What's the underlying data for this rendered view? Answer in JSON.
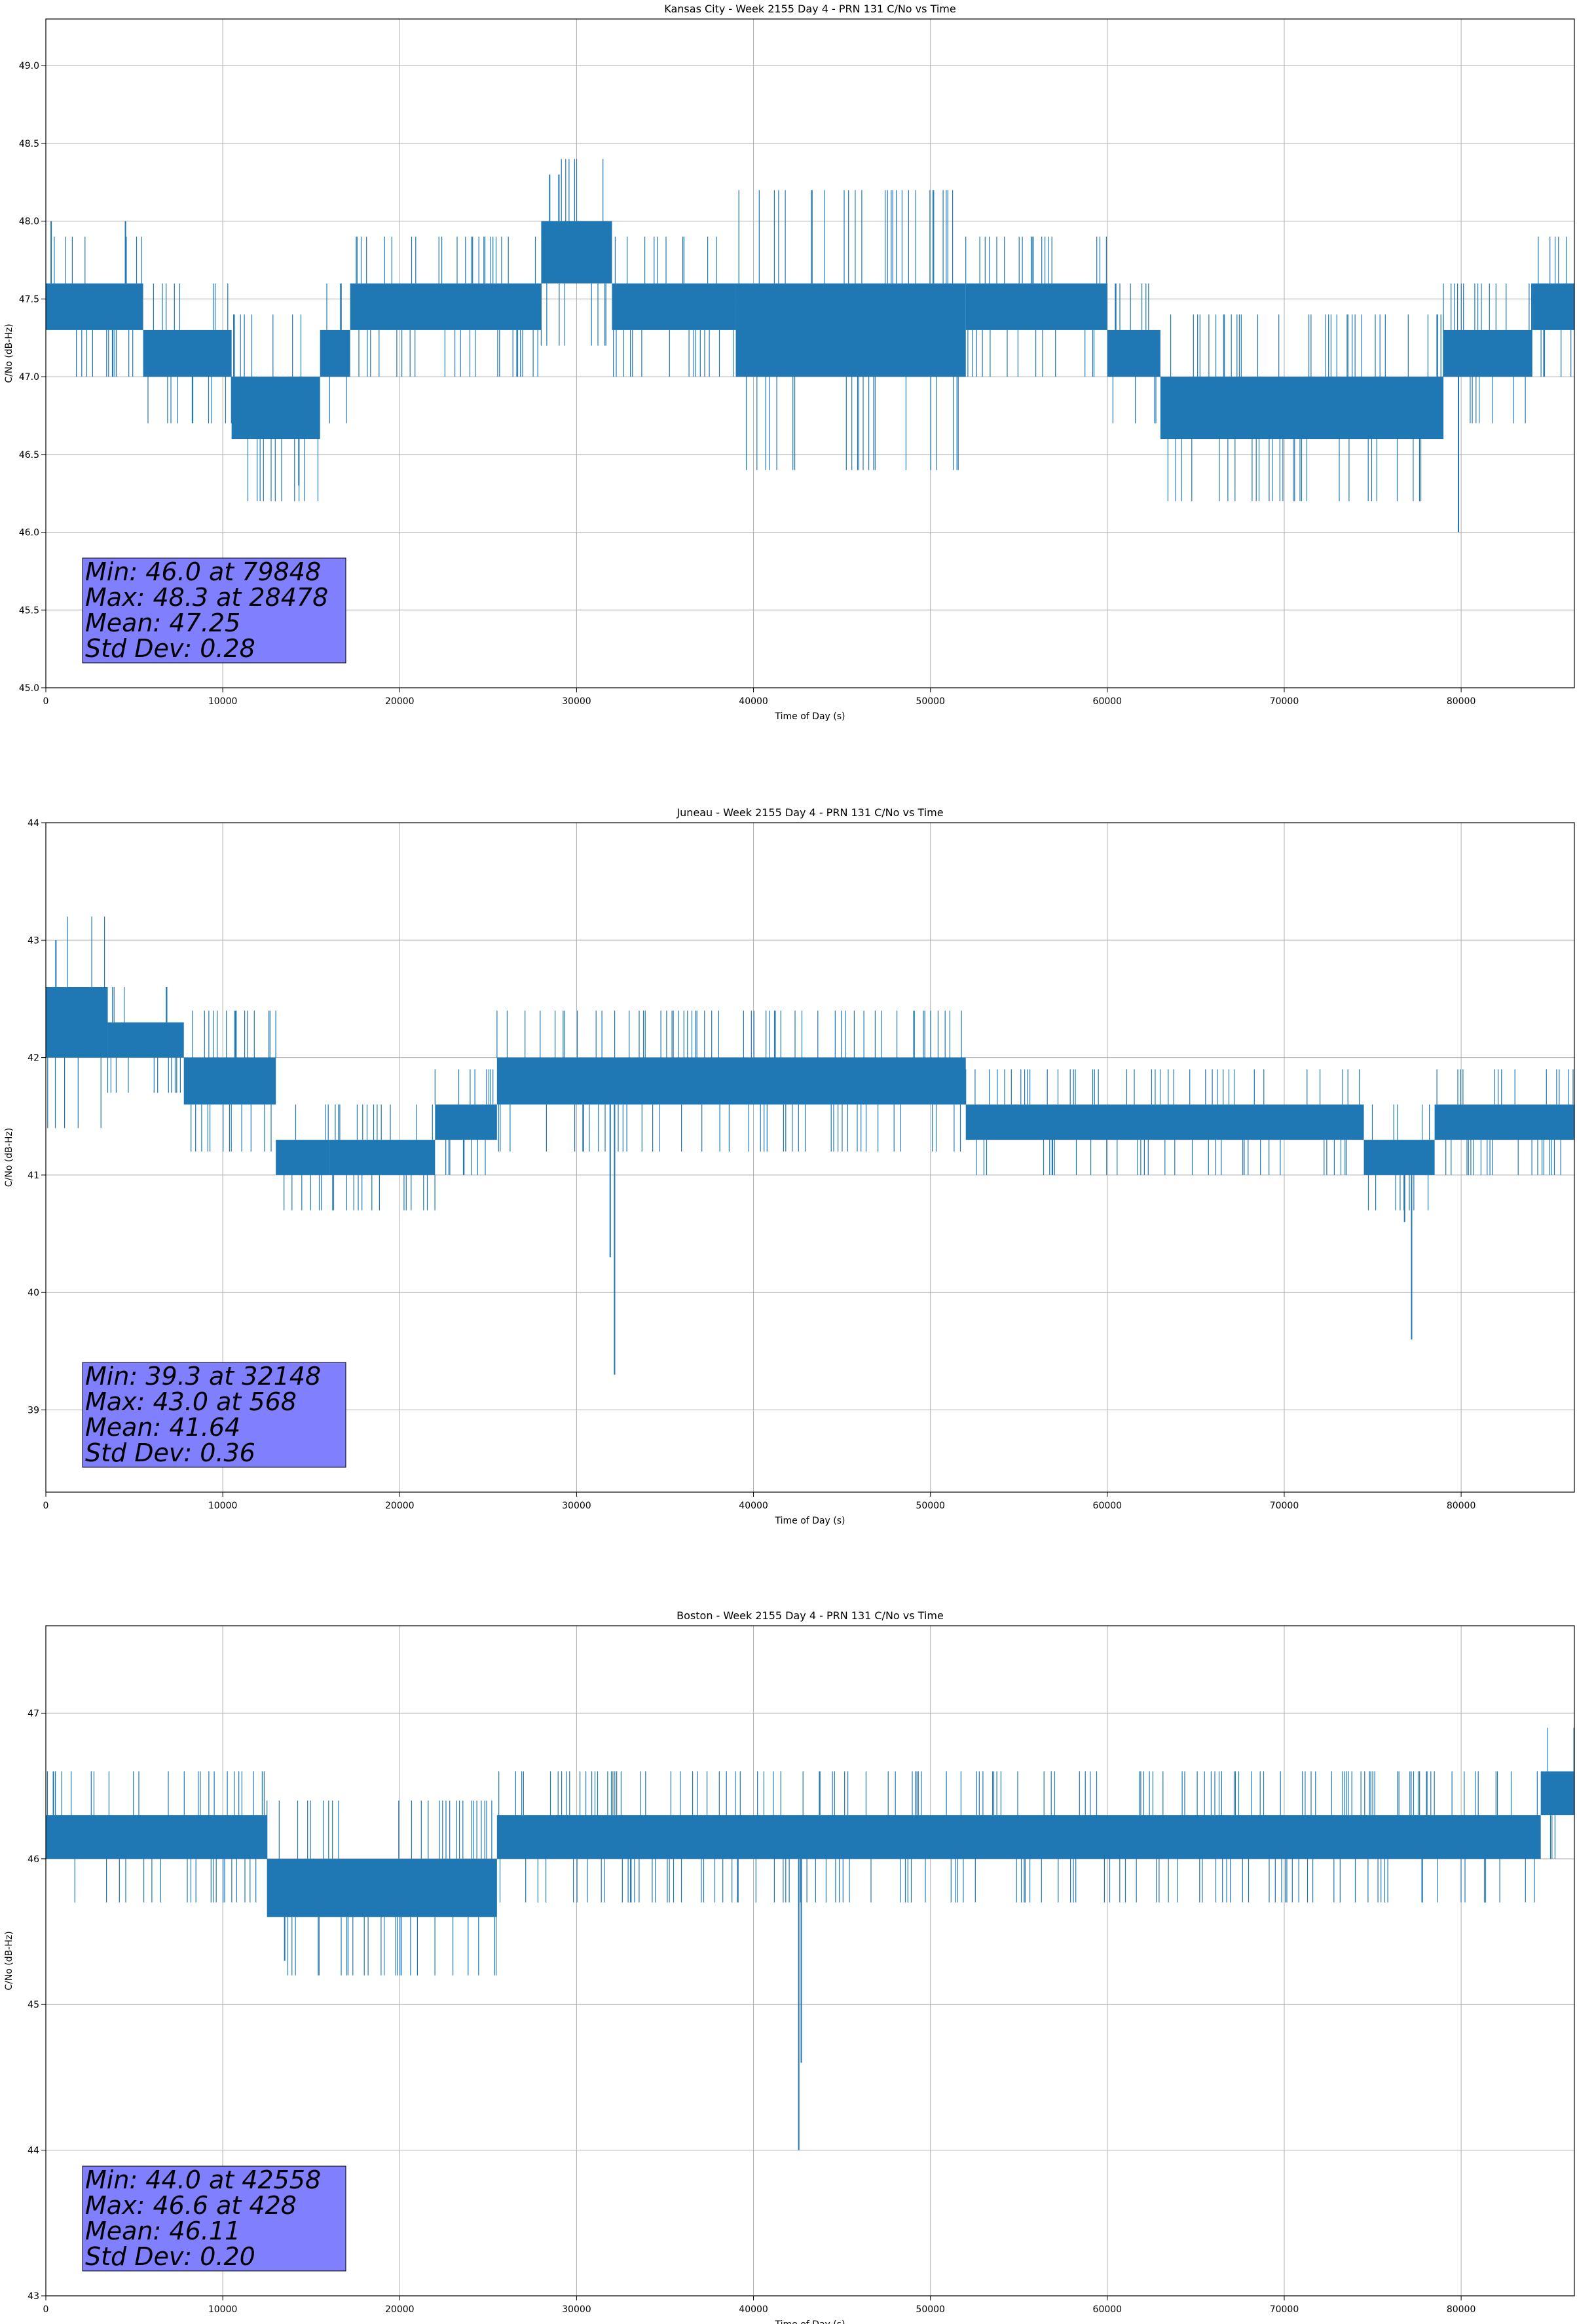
{
  "chart_data": [
    {
      "type": "line",
      "title": "Kansas City - Week 2155 Day 4 - PRN 131 C/No vs Time",
      "xlabel": "Time of Day (s)",
      "ylabel": "C/No (dB-Hz)",
      "xlim": [
        0,
        86400
      ],
      "ylim": [
        45.0,
        49.3
      ],
      "xticks": [
        0,
        10000,
        20000,
        30000,
        40000,
        50000,
        60000,
        70000,
        80000
      ],
      "xtick_labels": [
        "0",
        "10000",
        "20000",
        "30000",
        "40000",
        "50000",
        "60000",
        "70000",
        "80000"
      ],
      "yticks": [
        45.0,
        45.5,
        46.0,
        46.5,
        47.0,
        47.5,
        48.0,
        48.5,
        49.0
      ],
      "ytick_labels": [
        "45.0",
        "45.5",
        "46.0",
        "46.5",
        "47.0",
        "47.5",
        "48.0",
        "48.5",
        "49.0"
      ],
      "grid": true,
      "color": "#1f77b4",
      "series": [
        {
          "segments": [
            {
              "x": [
                0,
                5500
              ],
              "low": 47.3,
              "high": 47.6
            },
            {
              "x": [
                5500,
                10500
              ],
              "low": 47.0,
              "high": 47.3
            },
            {
              "x": [
                10500,
                15500
              ],
              "low": 46.6,
              "high": 47.0
            },
            {
              "x": [
                15500,
                17200
              ],
              "low": 47.0,
              "high": 47.3
            },
            {
              "x": [
                17200,
                28000
              ],
              "low": 47.3,
              "high": 47.6
            },
            {
              "x": [
                28000,
                32000
              ],
              "low": 47.6,
              "high": 48.0
            },
            {
              "x": [
                32000,
                39000
              ],
              "low": 47.3,
              "high": 47.6
            },
            {
              "x": [
                39000,
                52000
              ],
              "low": 47.0,
              "high": 47.6
            },
            {
              "x": [
                52000,
                60000
              ],
              "low": 47.3,
              "high": 47.6
            },
            {
              "x": [
                60000,
                63000
              ],
              "low": 47.0,
              "high": 47.3
            },
            {
              "x": [
                63000,
                79000
              ],
              "low": 46.6,
              "high": 47.0
            },
            {
              "x": [
                79000,
                84000
              ],
              "low": 47.0,
              "high": 47.3
            },
            {
              "x": [
                84000,
                86400
              ],
              "low": 47.3,
              "high": 47.6
            }
          ],
          "spikes": [
            {
              "x": 28478,
              "y": 48.3
            },
            {
              "x": 29000,
              "y": 48.3
            },
            {
              "x": 300,
              "y": 48.0
            },
            {
              "x": 4500,
              "y": 48.0
            },
            {
              "x": 14300,
              "y": 46.3
            },
            {
              "x": 79848,
              "y": 46.0
            }
          ]
        }
      ],
      "annotation": {
        "lines": [
          "Min: 46.0 at 79848",
          "Max: 48.3 at 28478",
          "Mean: 47.25",
          "Std Dev: 0.28"
        ],
        "box_color": "#8080ff"
      }
    },
    {
      "type": "line",
      "title": "Juneau - Week 2155 Day 4 - PRN 131 C/No vs Time",
      "xlabel": "Time of Day (s)",
      "ylabel": "C/No (dB-Hz)",
      "xlim": [
        0,
        86400
      ],
      "ylim": [
        38.3,
        44.0
      ],
      "xticks": [
        0,
        10000,
        20000,
        30000,
        40000,
        50000,
        60000,
        70000,
        80000
      ],
      "xtick_labels": [
        "0",
        "10000",
        "20000",
        "30000",
        "40000",
        "50000",
        "60000",
        "70000",
        "80000"
      ],
      "yticks": [
        39,
        40,
        41,
        42,
        43,
        44
      ],
      "ytick_labels": [
        "39",
        "40",
        "41",
        "42",
        "43",
        "44"
      ],
      "grid": true,
      "color": "#1f77b4",
      "series": [
        {
          "segments": [
            {
              "x": [
                0,
                3500
              ],
              "low": 42.0,
              "high": 42.6
            },
            {
              "x": [
                3500,
                7800
              ],
              "low": 42.0,
              "high": 42.3
            },
            {
              "x": [
                7800,
                13000
              ],
              "low": 41.6,
              "high": 42.0
            },
            {
              "x": [
                13000,
                16000
              ],
              "low": 41.0,
              "high": 41.3
            },
            {
              "x": [
                16000,
                22000
              ],
              "low": 41.0,
              "high": 41.3
            },
            {
              "x": [
                22000,
                25500
              ],
              "low": 41.3,
              "high": 41.6
            },
            {
              "x": [
                25500,
                52000
              ],
              "low": 41.6,
              "high": 42.0
            },
            {
              "x": [
                52000,
                74500
              ],
              "low": 41.3,
              "high": 41.6
            },
            {
              "x": [
                74500,
                78500
              ],
              "low": 41.0,
              "high": 41.3
            },
            {
              "x": [
                78500,
                86400
              ],
              "low": 41.3,
              "high": 41.6
            }
          ],
          "spikes": [
            {
              "x": 568,
              "y": 43.0
            },
            {
              "x": 32148,
              "y": 39.3
            },
            {
              "x": 31900,
              "y": 40.3
            },
            {
              "x": 77200,
              "y": 39.6
            },
            {
              "x": 76800,
              "y": 40.6
            }
          ]
        }
      ],
      "annotation": {
        "lines": [
          "Min: 39.3 at 32148",
          "Max: 43.0 at 568",
          "Mean: 41.64",
          "Std Dev: 0.36"
        ],
        "box_color": "#8080ff"
      }
    },
    {
      "type": "line",
      "title": "Boston - Week 2155 Day 4 - PRN 131 C/No vs Time",
      "xlabel": "Time of Day (s)",
      "ylabel": "C/No (dB-Hz)",
      "xlim": [
        0,
        86400
      ],
      "ylim": [
        43.0,
        47.6
      ],
      "xticks": [
        0,
        10000,
        20000,
        30000,
        40000,
        50000,
        60000,
        70000,
        80000
      ],
      "xtick_labels": [
        "0",
        "10000",
        "20000",
        "30000",
        "40000",
        "50000",
        "60000",
        "70000",
        "80000"
      ],
      "yticks": [
        43,
        44,
        45,
        46,
        47
      ],
      "ytick_labels": [
        "43",
        "44",
        "45",
        "46",
        "47"
      ],
      "grid": true,
      "color": "#1f77b4",
      "series": [
        {
          "segments": [
            {
              "x": [
                0,
                12500
              ],
              "low": 46.0,
              "high": 46.3
            },
            {
              "x": [
                12500,
                25500
              ],
              "low": 45.6,
              "high": 46.0
            },
            {
              "x": [
                25500,
                84500
              ],
              "low": 46.0,
              "high": 46.3
            },
            {
              "x": [
                84500,
                86400
              ],
              "low": 46.3,
              "high": 46.6
            }
          ],
          "spikes": [
            {
              "x": 428,
              "y": 46.6
            },
            {
              "x": 13500,
              "y": 45.3
            },
            {
              "x": 42558,
              "y": 44.0
            },
            {
              "x": 42700,
              "y": 44.6
            }
          ]
        }
      ],
      "annotation": {
        "lines": [
          "Min: 44.0 at 42558",
          "Max: 46.6 at 428",
          "Mean: 46.11",
          "Std Dev: 0.20"
        ],
        "box_color": "#8080ff"
      }
    }
  ]
}
